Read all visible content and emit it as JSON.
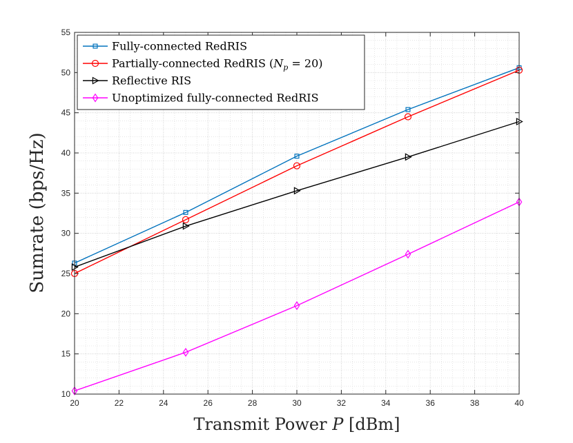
{
  "chart_data": {
    "type": "line",
    "title": "",
    "xlabel": "Transmit Power P [dBm]",
    "ylabel": "Sumrate (bps/Hz)",
    "xlim": [
      20,
      40
    ],
    "ylim": [
      10,
      55
    ],
    "xticks": [
      20,
      22,
      24,
      26,
      28,
      30,
      32,
      34,
      36,
      38,
      40
    ],
    "yticks": [
      10,
      15,
      20,
      25,
      30,
      35,
      40,
      45,
      50,
      55
    ],
    "grid": "on (major and minor, dotted)",
    "legend_location": "top-left",
    "x": [
      20,
      25,
      30,
      35,
      40
    ],
    "series": [
      {
        "name": "Fully-connected RedRIS",
        "color": "#0072BD",
        "marker": "square",
        "values": [
          26.3,
          32.6,
          39.6,
          45.4,
          50.6
        ]
      },
      {
        "name": "Partially-connected RedRIS (N_p = 20)",
        "color": "#FF0000",
        "marker": "circle",
        "values": [
          25.0,
          31.7,
          38.4,
          44.5,
          50.3
        ]
      },
      {
        "name": "Reflective RIS",
        "color": "#000000",
        "marker": "triangle-right",
        "values": [
          25.8,
          30.9,
          35.3,
          39.5,
          43.9
        ]
      },
      {
        "name": "Unoptimized fully-connected RedRIS",
        "color": "#FF00FF",
        "marker": "diamond",
        "values": [
          10.4,
          15.2,
          21.0,
          27.4,
          33.9
        ]
      }
    ]
  }
}
